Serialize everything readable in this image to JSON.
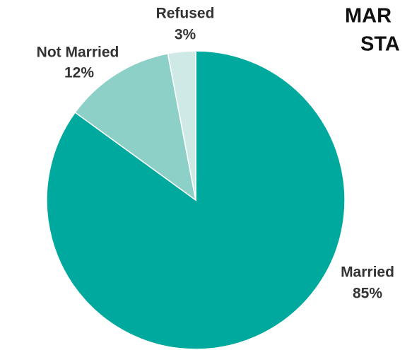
{
  "chart_data": {
    "type": "pie",
    "title_lines": [
      "MAR",
      "STA"
    ],
    "categories": [
      "Married",
      "Not Married",
      "Refused"
    ],
    "values": [
      85,
      12,
      3
    ],
    "value_labels": [
      "85%",
      "12%",
      "3%"
    ],
    "colors": [
      "#00a99d",
      "#8dd0c7",
      "#cfeae6"
    ]
  }
}
